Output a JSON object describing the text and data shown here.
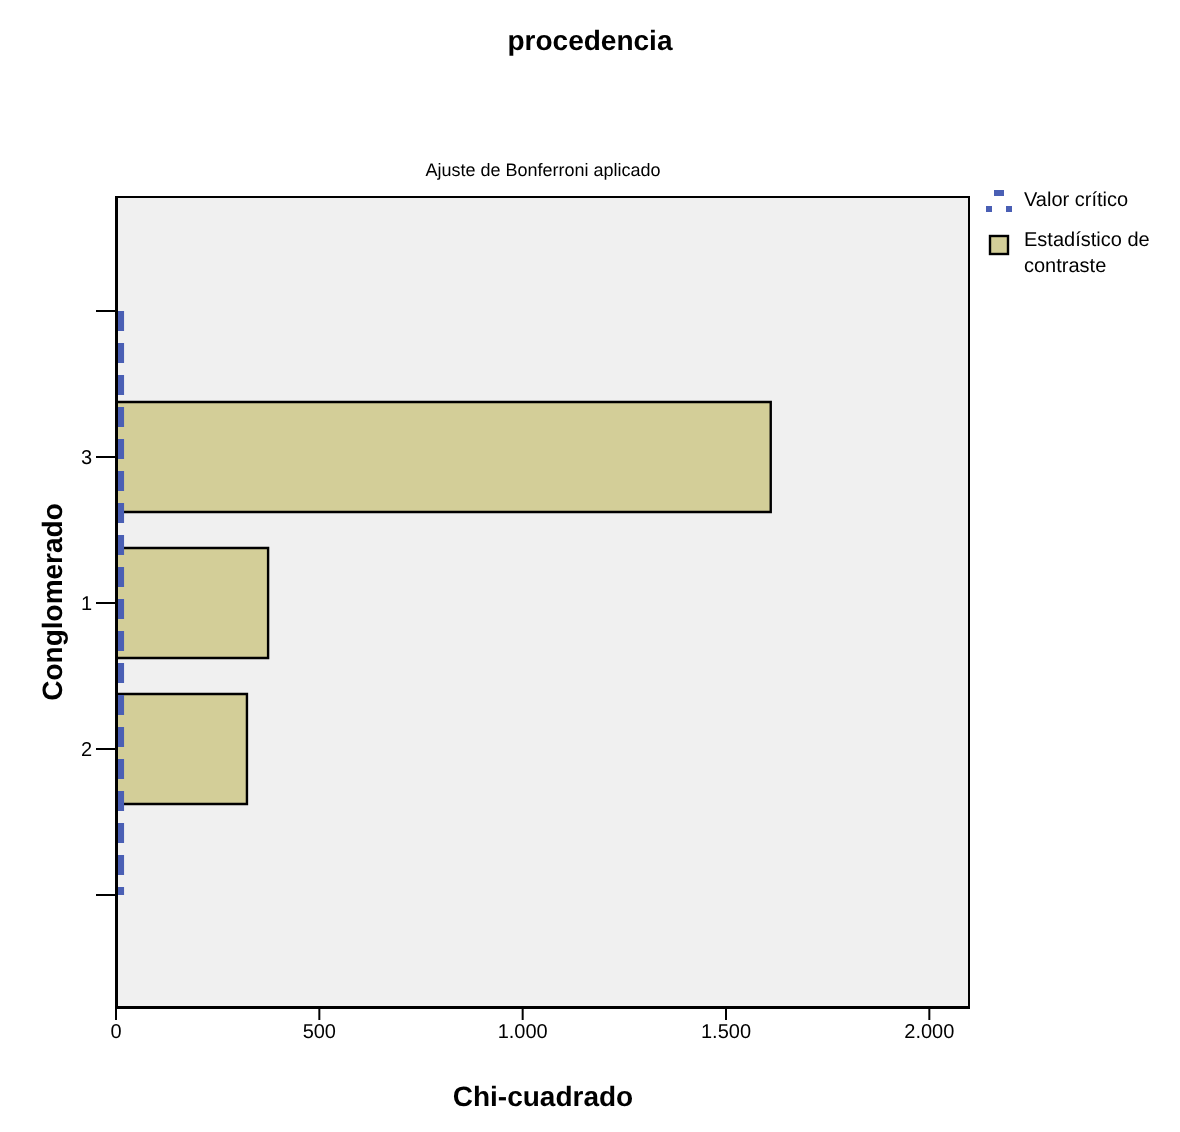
{
  "chart_data": {
    "type": "bar",
    "orientation": "horizontal",
    "title": "procedencia",
    "subtitle": "Ajuste de Bonferroni aplicado",
    "xlabel": "Chi-cuadrado",
    "ylabel": "Conglomerado",
    "categories": [
      null,
      "3",
      "1",
      "2",
      null
    ],
    "series": [
      {
        "name": "Valor crítico",
        "type": "line",
        "color": "#4a5fb4",
        "line_style": "dashed",
        "values": [
          10,
          10,
          10,
          10,
          10
        ]
      },
      {
        "name": "Estadístico de contraste",
        "color": "#d3ce98",
        "values": [
          null,
          1610,
          374,
          322,
          null
        ]
      }
    ],
    "xlim": [
      0,
      2100
    ],
    "xticks": [
      0,
      500,
      {
        "value": 1000,
        "label": "1.000"
      },
      {
        "value": 1500,
        "label": "1.500"
      },
      {
        "value": 2000,
        "label": "2.000"
      }
    ],
    "legend": "top right",
    "marker": "none"
  }
}
